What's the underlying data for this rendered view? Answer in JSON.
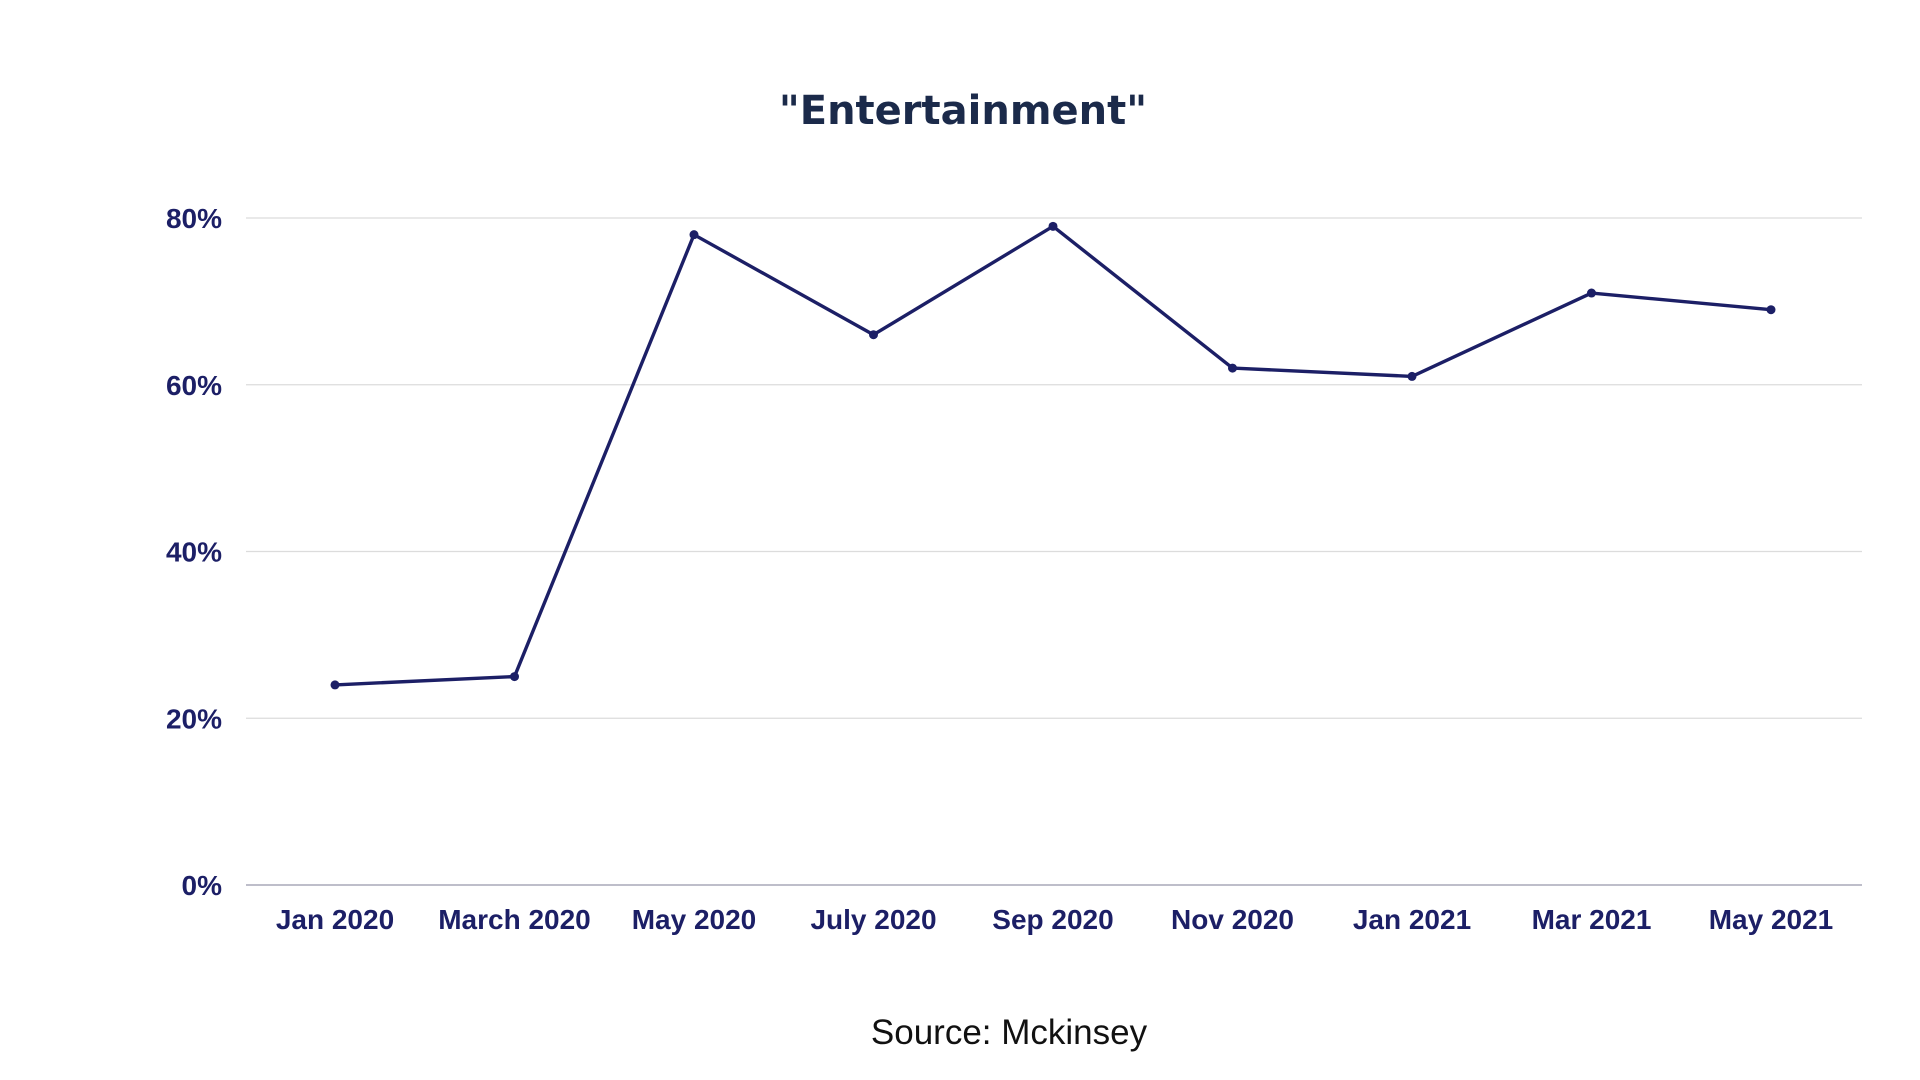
{
  "chart_data": {
    "type": "line",
    "title": "\"Entertainment\"",
    "xlabel": "",
    "ylabel": "",
    "categories": [
      "Jan 2020",
      "March 2020",
      "May 2020",
      "July 2020",
      "Sep 2020",
      "Nov 2020",
      "Jan 2021",
      "Mar 2021",
      "May 2021"
    ],
    "series": [
      {
        "values": [
          24,
          25,
          78,
          66,
          79,
          62,
          61,
          71,
          69
        ]
      }
    ],
    "ylim": [
      0,
      80
    ],
    "yticks": [
      0,
      20,
      40,
      60,
      80
    ],
    "ytick_labels": [
      "0%",
      "20%",
      "40%",
      "60%",
      "80%"
    ],
    "grid": true,
    "legend": "none",
    "source": "Source: Mckinsey"
  },
  "colors": {
    "series": "#1c1f66",
    "title": "#1b2a4a",
    "ticks": "#1c1f66",
    "grid": "#dcdcdc",
    "axis": "#a8a8b8"
  }
}
